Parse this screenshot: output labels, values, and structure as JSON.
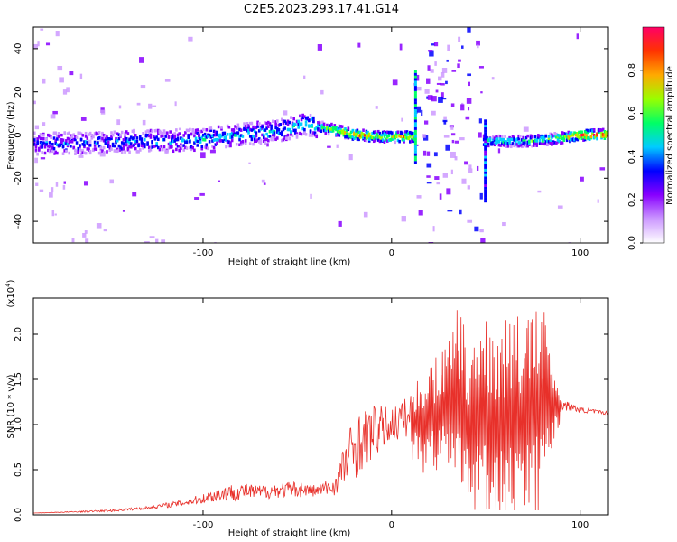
{
  "title": "C2E5.2023.293.17.41.G14",
  "chart_data": [
    {
      "type": "heatmap",
      "title": "C2E5.2023.293.17.41.G14",
      "xlabel": "Height of straight line (km)",
      "ylabel": "Frequency (Hz)",
      "xlim": [
        -190,
        115
      ],
      "ylim": [
        -50,
        50
      ],
      "xticks": [
        -100,
        0,
        100
      ],
      "yticks": [
        -40,
        -20,
        0,
        20,
        40
      ],
      "grid": false,
      "ridge": [
        {
          "x": -180,
          "y": -4,
          "amp": 0.35
        },
        {
          "x": -160,
          "y": -4,
          "amp": 0.35
        },
        {
          "x": -140,
          "y": -3,
          "amp": 0.4
        },
        {
          "x": -120,
          "y": -3,
          "amp": 0.4
        },
        {
          "x": -100,
          "y": -2,
          "amp": 0.45
        },
        {
          "x": -80,
          "y": 0,
          "amp": 0.45
        },
        {
          "x": -60,
          "y": 2,
          "amp": 0.45
        },
        {
          "x": -45,
          "y": 5,
          "amp": 0.5
        },
        {
          "x": -35,
          "y": 3,
          "amp": 0.6
        },
        {
          "x": -20,
          "y": 0,
          "amp": 0.85
        },
        {
          "x": -5,
          "y": -1,
          "amp": 0.7
        },
        {
          "x": 8,
          "y": -1,
          "amp": 0.8
        },
        {
          "x": 52,
          "y": -3,
          "amp": 0.5
        },
        {
          "x": 70,
          "y": -3,
          "amp": 0.55
        },
        {
          "x": 85,
          "y": -2,
          "amp": 0.6
        },
        {
          "x": 100,
          "y": 0,
          "amp": 0.95
        },
        {
          "x": 115,
          "y": 0,
          "amp": 0.95
        }
      ],
      "colorbar": {
        "label": "Normalized spectral amplitude",
        "ticks": [
          "0.0",
          "0.2",
          "0.4",
          "0.6",
          "0.8"
        ],
        "range": [
          0,
          1
        ],
        "colors": [
          "#ffffff",
          "#cc99ff",
          "#8800ff",
          "#0000ff",
          "#00ccff",
          "#00ff66",
          "#99ff00",
          "#ffaa00",
          "#ff3300",
          "#ff0066"
        ]
      }
    },
    {
      "type": "line",
      "title": "",
      "xlabel": "Height of straight line (km)",
      "ylabel": "SNR (10 * v/v)",
      "scale_label": "(x10",
      "scale_exp": "4",
      "scale_close": ")",
      "xlim": [
        -190,
        115
      ],
      "ylim": [
        0,
        2.4
      ],
      "xticks": [
        -100,
        0,
        100
      ],
      "yticks": [
        "0.0",
        "0.5",
        "1.0",
        "1.5",
        "2.0"
      ],
      "color": "#e8302a",
      "x": [
        -190,
        -150,
        -130,
        -110,
        -100,
        -90,
        -80,
        -70,
        -60,
        -50,
        -40,
        -30,
        -25,
        -20,
        -10,
        0,
        10,
        20,
        30,
        35,
        40,
        50,
        60,
        70,
        80,
        85,
        90,
        100,
        115
      ],
      "y": [
        0.02,
        0.04,
        0.07,
        0.12,
        0.16,
        0.2,
        0.22,
        0.22,
        0.24,
        0.25,
        0.24,
        0.28,
        0.45,
        0.6,
        0.8,
        0.92,
        1.0,
        1.05,
        1.2,
        1.25,
        1.0,
        1.05,
        1.0,
        1.1,
        1.15,
        1.2,
        1.2,
        1.15,
        1.12
      ],
      "envelope": [
        0.02,
        0.06,
        0.1,
        0.18,
        0.25,
        0.35,
        0.38,
        0.35,
        0.38,
        0.4,
        0.35,
        0.45,
        0.9,
        1.2,
        1.3,
        1.25,
        1.4,
        1.7,
        1.9,
        2.3,
        2.0,
        2.15,
        2.2,
        2.2,
        2.35,
        1.8,
        1.3,
        1.2,
        1.15
      ]
    }
  ]
}
